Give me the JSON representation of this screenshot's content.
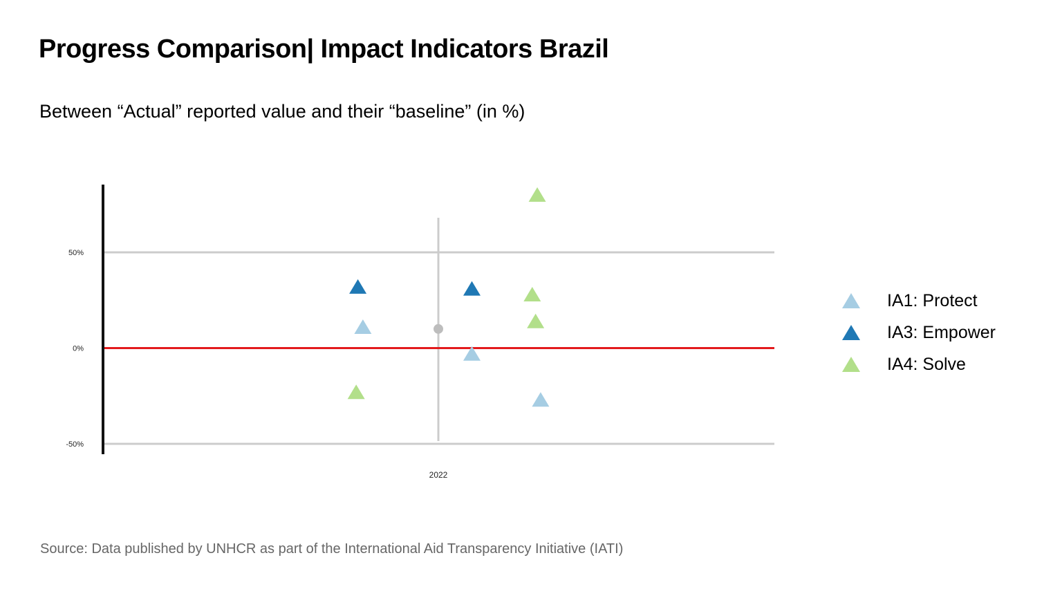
{
  "header": {
    "title": "Progress Comparison| Impact Indicators Brazil",
    "subtitle": "Between “Actual” reported value and their “baseline” (in %)"
  },
  "footer": {
    "source": "Source: Data published by UNHCR as part of the International Aid Transparency Initiative (IATI)"
  },
  "colors": {
    "IA1": "#a6cde3",
    "IA3": "#1f78b4",
    "IA4": "#b2df8a",
    "zero_line": "#e31a1c",
    "grid": "#cccccc",
    "axis": "#111111",
    "marker": "#bdbdbd"
  },
  "chart_data": {
    "type": "scatter",
    "title": "Progress Comparison| Impact Indicators Brazil",
    "subtitle": "Between “Actual” reported value and their “baseline” (in %)",
    "x_tick_labels": [
      "2022"
    ],
    "y_ticks": [
      50,
      0,
      -50
    ],
    "y_tick_labels": [
      "50%",
      "0%",
      "-50%"
    ],
    "ylim": [
      -55,
      85
    ],
    "x_range": [
      -1,
      1
    ],
    "grid": true,
    "reference_line_y": 0,
    "legend_position": "right",
    "series": [
      {
        "name": "IA1: Protect",
        "color_key": "IA1",
        "points": [
          {
            "x": -0.225,
            "y": 11
          },
          {
            "x": 0.1,
            "y": -3
          },
          {
            "x": 0.305,
            "y": -27
          }
        ]
      },
      {
        "name": "IA3: Empower",
        "color_key": "IA3",
        "points": [
          {
            "x": -0.24,
            "y": 32
          },
          {
            "x": 0.1,
            "y": 31
          }
        ]
      },
      {
        "name": "IA4: Solve",
        "color_key": "IA4",
        "points": [
          {
            "x": -0.245,
            "y": -23
          },
          {
            "x": 0.28,
            "y": 28
          },
          {
            "x": 0.29,
            "y": 14
          },
          {
            "x": 0.295,
            "y": 80
          }
        ]
      }
    ],
    "center_marker": {
      "x": 0,
      "y": 10
    }
  }
}
